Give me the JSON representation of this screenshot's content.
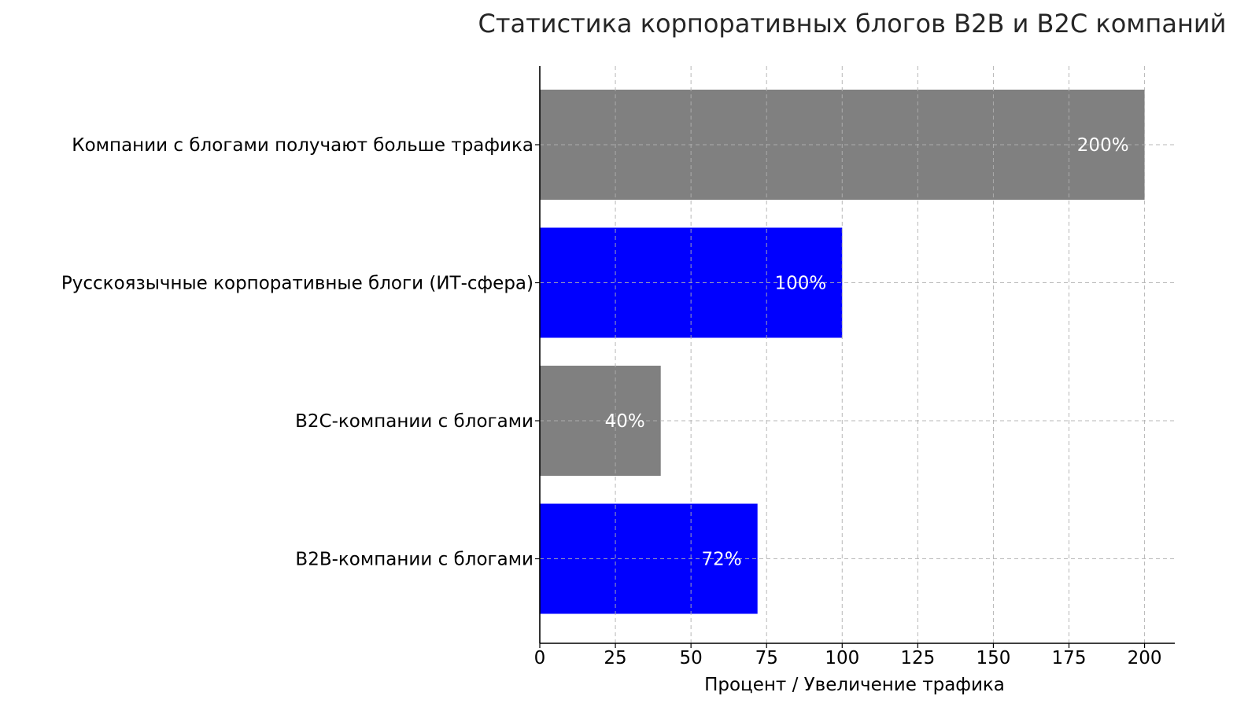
{
  "chart_data": {
    "type": "bar",
    "orientation": "horizontal",
    "title": "Статистика корпоративных блогов B2B и B2C компаний",
    "xlabel": "Процент / Увеличение трафика",
    "ylabel": "",
    "xlim": [
      0,
      210
    ],
    "xticks": [
      0,
      25,
      50,
      75,
      100,
      125,
      150,
      175,
      200
    ],
    "grid": true,
    "categories": [
      "B2B-компании с блогами",
      "B2C-компании с блогами",
      "Русскоязычные корпоративные блоги (ИТ-сфера)",
      "Компании с блогами получают больше трафика"
    ],
    "values": [
      72,
      40,
      100,
      200
    ],
    "data_labels": [
      "72%",
      "40%",
      "100%",
      "200%"
    ],
    "bar_colors": [
      "#0000ff",
      "#808080",
      "#0000ff",
      "#808080"
    ]
  }
}
